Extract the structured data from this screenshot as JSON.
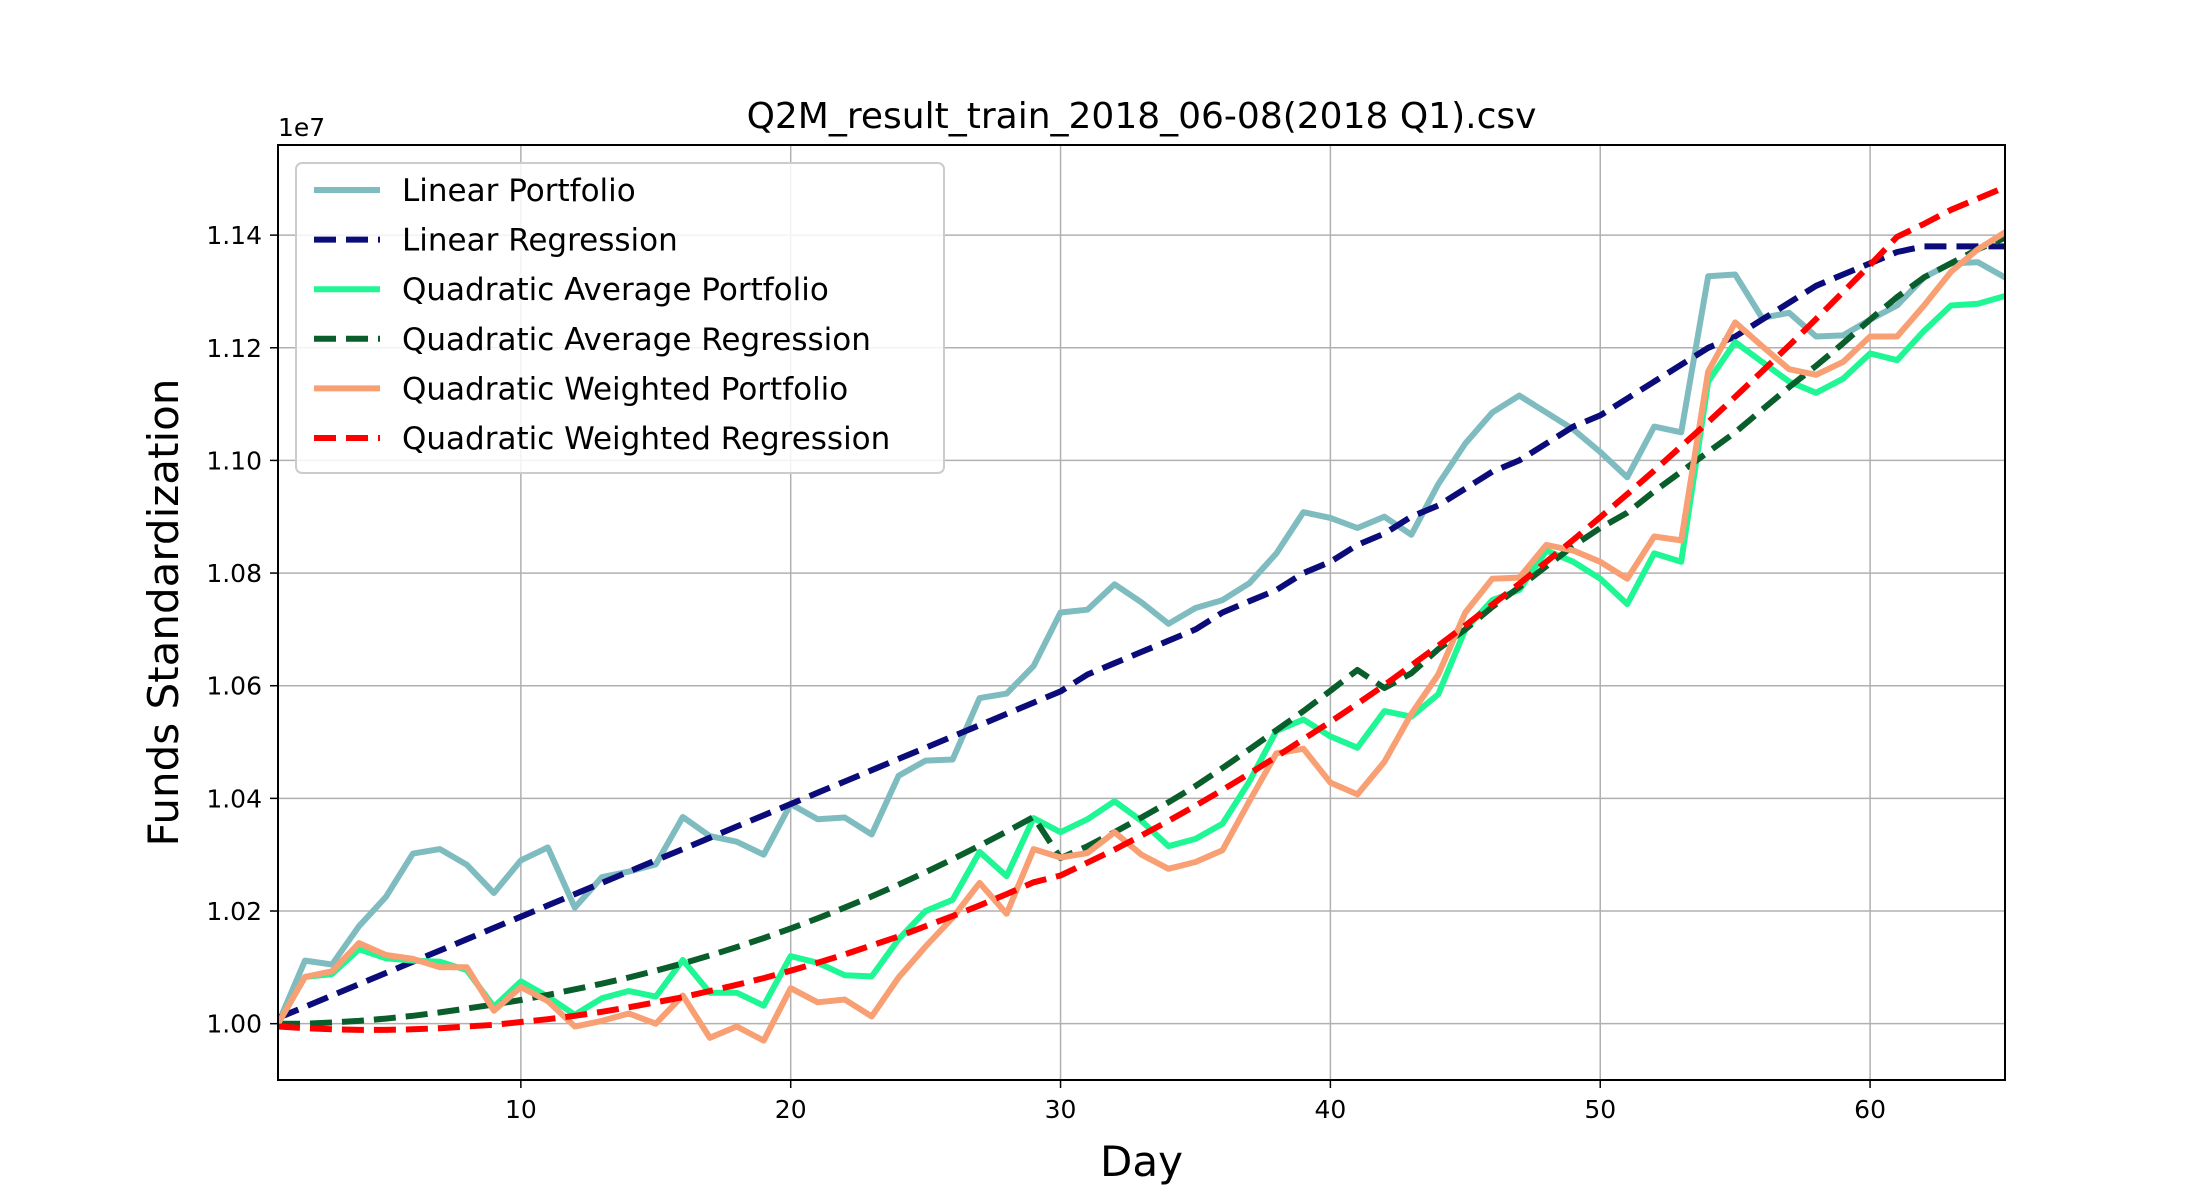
{
  "chart_data": {
    "type": "line",
    "title": "Q2M_result_train_2018_06-08(2018 Q1).csv",
    "xlabel": "Day",
    "ylabel": "Funds Standardization",
    "y_offset_label": "1e7",
    "xlim": [
      1,
      65
    ],
    "ylim": [
      0.99,
      1.156
    ],
    "x_ticks": [
      10,
      20,
      30,
      40,
      50,
      60
    ],
    "y_ticks": [
      1.0,
      1.02,
      1.04,
      1.06,
      1.08,
      1.1,
      1.12,
      1.14
    ],
    "y_tick_labels": [
      "1.00",
      "1.02",
      "1.04",
      "1.06",
      "1.08",
      "1.10",
      "1.12",
      "1.14"
    ],
    "grid": true,
    "legend_position": "top-left",
    "x": [
      1,
      2,
      3,
      4,
      5,
      6,
      7,
      8,
      9,
      10,
      11,
      12,
      13,
      14,
      15,
      16,
      17,
      18,
      19,
      20,
      21,
      22,
      23,
      24,
      25,
      26,
      27,
      28,
      29,
      30,
      31,
      32,
      33,
      34,
      35,
      36,
      37,
      38,
      39,
      40,
      41,
      42,
      43,
      44,
      45,
      46,
      47,
      48,
      49,
      50,
      51,
      52,
      53,
      54,
      55,
      56,
      57,
      58,
      59,
      60,
      61,
      62,
      63,
      64,
      65
    ],
    "series": [
      {
        "name": "Linear Portfolio",
        "color": "#7fbcc0",
        "dashed": false,
        "values": [
          1.0,
          1.0112,
          1.0105,
          1.0173,
          1.0225,
          1.0302,
          1.031,
          1.0282,
          1.0232,
          1.029,
          1.0313,
          1.0206,
          1.026,
          1.027,
          1.0283,
          1.0367,
          1.0333,
          1.0323,
          1.03,
          1.039,
          1.0363,
          1.0366,
          1.0336,
          1.044,
          1.0467,
          1.0469,
          1.0578,
          1.0586,
          1.0635,
          1.073,
          1.0735,
          1.078,
          1.0748,
          1.071,
          1.0738,
          1.0752,
          1.0782,
          1.0835,
          1.0908,
          1.0898,
          1.088,
          1.09,
          1.0868,
          1.0958,
          1.103,
          1.1085,
          1.1115,
          1.1085,
          1.1055,
          1.1015,
          1.097,
          1.106,
          1.105,
          1.1327,
          1.133,
          1.1253,
          1.1262,
          1.122,
          1.1222,
          1.125,
          1.1275,
          1.1325,
          1.135,
          1.1352,
          1.1325
        ]
      },
      {
        "name": "Linear Regression",
        "color": "#0b0b7a",
        "dashed": true,
        "values": [
          1.001,
          1.003,
          1.005,
          1.007,
          1.009,
          1.011,
          1.013,
          1.015,
          1.017,
          1.019,
          1.021,
          1.023,
          1.025,
          1.027,
          1.029,
          1.031,
          1.033,
          1.035,
          1.037,
          1.039,
          1.041,
          1.043,
          1.045,
          1.047,
          1.049,
          1.051,
          1.053,
          1.055,
          1.057,
          1.059,
          1.062,
          1.064,
          1.066,
          1.068,
          1.07,
          1.073,
          1.075,
          1.077,
          1.08,
          1.082,
          1.085,
          1.087,
          1.09,
          1.092,
          1.095,
          1.098,
          1.1,
          1.103,
          1.106,
          1.108,
          1.111,
          1.114,
          1.117,
          1.12,
          1.122,
          1.125,
          1.128,
          1.131,
          1.133,
          1.135,
          1.137,
          1.138,
          1.138,
          1.138,
          1.138
        ]
      },
      {
        "name": "Quadratic Average Portfolio",
        "color": "#1ef794",
        "dashed": false,
        "values": [
          1.0,
          1.0083,
          1.0088,
          1.0132,
          1.0116,
          1.0112,
          1.011,
          1.0095,
          1.003,
          1.0075,
          1.0048,
          1.0016,
          1.0045,
          1.0058,
          1.0048,
          1.0113,
          1.0055,
          1.0055,
          1.0032,
          1.012,
          1.0108,
          1.0086,
          1.0084,
          1.015,
          1.02,
          1.022,
          1.0305,
          1.0262,
          1.0365,
          1.034,
          1.0363,
          1.0395,
          1.036,
          1.0315,
          1.0328,
          1.0355,
          1.043,
          1.052,
          1.054,
          1.051,
          1.049,
          1.0555,
          1.0545,
          1.0585,
          1.07,
          1.0752,
          1.077,
          1.084,
          1.082,
          1.079,
          1.0745,
          1.0835,
          1.082,
          1.114,
          1.121,
          1.1175,
          1.114,
          1.112,
          1.1145,
          1.119,
          1.1178,
          1.123,
          1.1275,
          1.1278,
          1.1292
        ]
      },
      {
        "name": "Quadratic Average Regression",
        "color": "#0a5e2c",
        "dashed": true,
        "values": [
          1.0,
          1.0,
          1.0002,
          1.0005,
          1.0009,
          1.0014,
          1.002,
          1.0027,
          1.0034,
          1.0042,
          1.0051,
          1.0061,
          1.0071,
          1.0082,
          1.0094,
          1.0107,
          1.0121,
          1.0136,
          1.0152,
          1.0169,
          1.0187,
          1.0206,
          1.0226,
          1.0247,
          1.0269,
          1.0292,
          1.0316,
          1.0341,
          1.0367,
          1.0294,
          1.0315,
          1.034,
          1.0366,
          1.0393,
          1.0422,
          1.0454,
          1.0487,
          1.0521,
          1.0555,
          1.0591,
          1.0628,
          1.0596,
          1.0622,
          1.0665,
          1.07,
          1.074,
          1.0775,
          1.0812,
          1.0848,
          1.088,
          1.0907,
          1.0945,
          1.098,
          1.1015,
          1.105,
          1.109,
          1.113,
          1.1168,
          1.1208,
          1.125,
          1.129,
          1.1325,
          1.135,
          1.1375,
          1.1395
        ]
      },
      {
        "name": "Quadratic Weighted Portfolio",
        "color": "#f89f74",
        "dashed": false,
        "values": [
          1.0,
          1.0083,
          1.0093,
          1.0143,
          1.0122,
          1.0115,
          1.01,
          1.01,
          1.0023,
          1.0065,
          1.004,
          0.9995,
          1.0005,
          1.0018,
          1.0,
          1.005,
          0.9975,
          0.9995,
          0.997,
          1.0063,
          1.0038,
          1.0043,
          1.0013,
          1.0082,
          1.0137,
          1.0188,
          1.025,
          1.0195,
          1.031,
          1.0295,
          1.0303,
          1.034,
          1.03,
          1.0275,
          1.0287,
          1.0308,
          1.0395,
          1.048,
          1.0488,
          1.0428,
          1.0407,
          1.0465,
          1.055,
          1.062,
          1.073,
          1.079,
          1.0792,
          1.085,
          1.084,
          1.082,
          1.079,
          1.0865,
          1.0858,
          1.1158,
          1.1245,
          1.1203,
          1.1162,
          1.1152,
          1.1175,
          1.122,
          1.122,
          1.1275,
          1.1335,
          1.1375,
          1.1405
        ]
      },
      {
        "name": "Quadratic Weighted Regression",
        "color": "#ff0000",
        "dashed": true,
        "values": [
          0.9995,
          0.9992,
          0.999,
          0.9989,
          0.9989,
          0.999,
          0.9992,
          0.9995,
          0.9998,
          1.0003,
          1.0008,
          1.0014,
          1.0021,
          1.0029,
          1.0038,
          1.0047,
          1.0058,
          1.0069,
          1.0081,
          1.0094,
          1.0108,
          1.0123,
          1.0139,
          1.0155,
          1.0173,
          1.0191,
          1.021,
          1.023,
          1.0251,
          1.0263,
          1.0286,
          1.0309,
          1.0334,
          1.036,
          1.0387,
          1.0415,
          1.0444,
          1.0474,
          1.0505,
          1.0536,
          1.0568,
          1.0601,
          1.0636,
          1.0671,
          1.0707,
          1.0744,
          1.0781,
          1.082,
          1.0859,
          1.0899,
          1.094,
          1.0982,
          1.1025,
          1.1068,
          1.1113,
          1.1158,
          1.1204,
          1.1251,
          1.1299,
          1.1347,
          1.1397,
          1.142,
          1.1445,
          1.1465,
          1.1485
        ]
      }
    ]
  }
}
